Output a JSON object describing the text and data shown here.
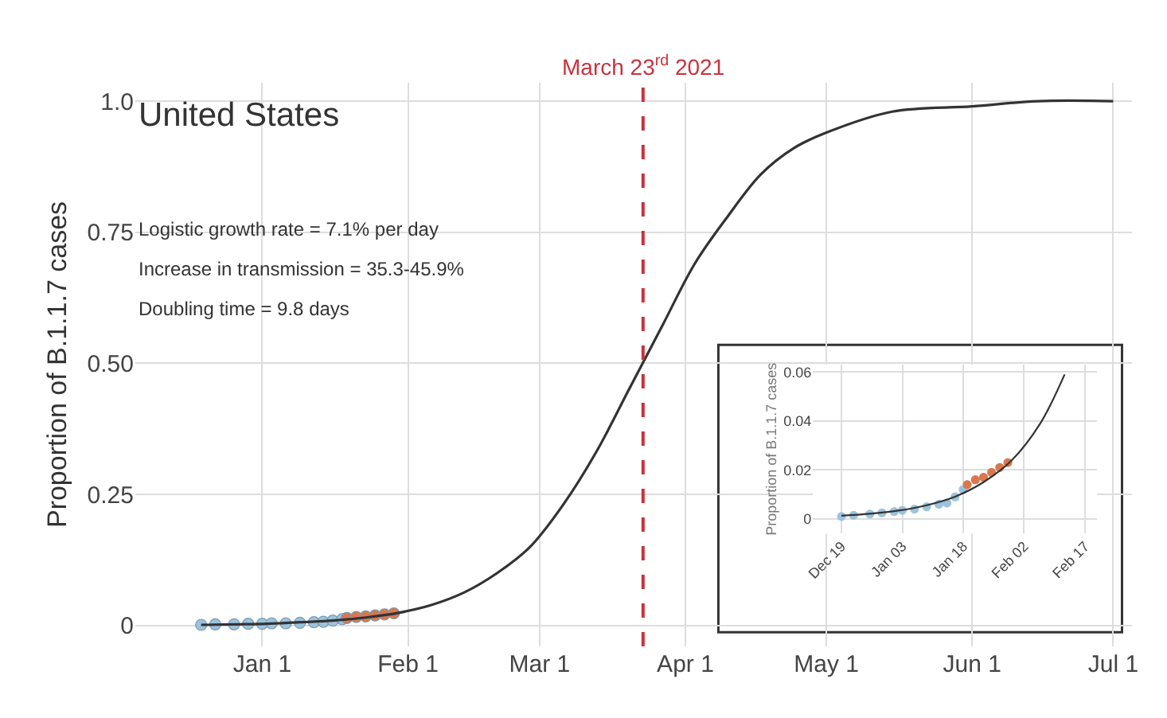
{
  "chart_data": [
    {
      "type": "scatter",
      "title": "United States",
      "ylabel": "Proportion of B.1.1.7 cases",
      "xlim": [
        "2020-12-05",
        "2021-07-05"
      ],
      "ylim": [
        -0.04,
        1.035
      ],
      "xticks": [
        {
          "value": "2021-01-01",
          "label": "Jan 1"
        },
        {
          "value": "2021-02-01",
          "label": "Feb 1"
        },
        {
          "value": "2021-03-01",
          "label": "Mar 1"
        },
        {
          "value": "2021-04-01",
          "label": "Apr 1"
        },
        {
          "value": "2021-05-01",
          "label": "May 1"
        },
        {
          "value": "2021-06-01",
          "label": "Jun 1"
        },
        {
          "value": "2021-07-01",
          "label": "Jul 1"
        }
      ],
      "yticks": [
        0,
        0.25,
        {
          "value": 0.5,
          "label": "0.50"
        },
        0.75,
        {
          "value": 1.0,
          "label": "1.0"
        }
      ],
      "grid": true,
      "annotations": [
        "Logistic growth rate = 7.1% per day",
        "Increase in transmission = 35.3-45.9%",
        "Doubling time = 9.8 days"
      ],
      "ref_lines": [
        {
          "axis": "x",
          "value": "2021-03-23",
          "label": "March 23$^{rd}$ 2021",
          "color": "#c8323c",
          "line_style": "dashed"
        }
      ],
      "series": [
        {
          "marker": "circle",
          "color": "#9cc3dd",
          "x": [
            "2020-12-19",
            "2020-12-22",
            "2020-12-26",
            "2020-12-29",
            "2021-01-01",
            "2021-01-03",
            "2021-01-06",
            "2021-01-09",
            "2021-01-12",
            "2021-01-14",
            "2021-01-16",
            "2021-01-18"
          ],
          "values": [
            0.001,
            0.002,
            0.002,
            0.003,
            0.003,
            0.004,
            0.004,
            0.005,
            0.006,
            0.007,
            0.009,
            0.012
          ]
        },
        {
          "marker": "circle",
          "color": "#d9774f",
          "x": [
            "2021-01-19",
            "2021-01-21",
            "2021-01-23",
            "2021-01-25",
            "2021-01-27",
            "2021-01-29"
          ],
          "values": [
            0.014,
            0.016,
            0.017,
            0.019,
            0.021,
            0.023
          ]
        },
        {
          "type": "line",
          "marker": "none",
          "color": "#333333",
          "x": [
            "2020-12-19",
            "2020-12-26",
            "2021-01-02",
            "2021-01-09",
            "2021-01-16",
            "2021-01-23",
            "2021-01-30",
            "2021-02-06",
            "2021-02-13",
            "2021-02-20",
            "2021-02-27",
            "2021-03-06",
            "2021-03-13",
            "2021-03-20",
            "2021-03-27",
            "2021-04-03",
            "2021-04-10",
            "2021-04-17",
            "2021-04-24",
            "2021-05-01",
            "2021-05-15",
            "2021-06-01",
            "2021-06-15",
            "2021-07-01"
          ],
          "values": [
            0.001,
            0.002,
            0.003,
            0.006,
            0.009,
            0.015,
            0.024,
            0.039,
            0.063,
            0.1,
            0.15,
            0.23,
            0.33,
            0.45,
            0.57,
            0.69,
            0.78,
            0.86,
            0.91,
            0.94,
            0.98,
            0.99,
            1.0,
            1.0
          ]
        }
      ]
    },
    {
      "type": "scatter",
      "ylabel": "Proportion of B.1.1.7 cases",
      "xlim": [
        "2020-12-12",
        "2021-02-20"
      ],
      "ylim": [
        -0.006,
        0.063
      ],
      "xticks": [
        {
          "value": "2020-12-19",
          "label": "Dec 19"
        },
        {
          "value": "2021-01-03",
          "label": "Jan 03"
        },
        {
          "value": "2021-01-18",
          "label": "Jan 18"
        },
        {
          "value": "2021-02-02",
          "label": "Feb 02"
        },
        {
          "value": "2021-02-17",
          "label": "Feb 17"
        }
      ],
      "yticks": [
        0,
        0.02,
        0.04,
        0.06
      ],
      "grid": true,
      "series": [
        {
          "marker": "circle",
          "color": "#9cc3dd",
          "x": [
            "2020-12-19",
            "2020-12-22",
            "2020-12-26",
            "2020-12-29",
            "2021-01-01",
            "2021-01-03",
            "2021-01-06",
            "2021-01-09",
            "2021-01-12",
            "2021-01-14",
            "2021-01-16",
            "2021-01-18"
          ],
          "values": [
            0.001,
            0.0015,
            0.002,
            0.0025,
            0.003,
            0.0035,
            0.004,
            0.005,
            0.006,
            0.0065,
            0.009,
            0.012
          ]
        },
        {
          "marker": "circle",
          "color": "#d9774f",
          "x": [
            "2021-01-19",
            "2021-01-21",
            "2021-01-23",
            "2021-01-25",
            "2021-01-27",
            "2021-01-29"
          ],
          "values": [
            0.014,
            0.016,
            0.017,
            0.019,
            0.021,
            0.023
          ]
        },
        {
          "type": "line",
          "marker": "none",
          "color": "#333333",
          "x": [
            "2020-12-19",
            "2020-12-26",
            "2021-01-02",
            "2021-01-09",
            "2021-01-16",
            "2021-01-23",
            "2021-01-30",
            "2021-02-06",
            "2021-02-12"
          ],
          "values": [
            0.0013,
            0.0021,
            0.0034,
            0.0056,
            0.0091,
            0.015,
            0.024,
            0.039,
            0.059
          ]
        }
      ]
    }
  ]
}
